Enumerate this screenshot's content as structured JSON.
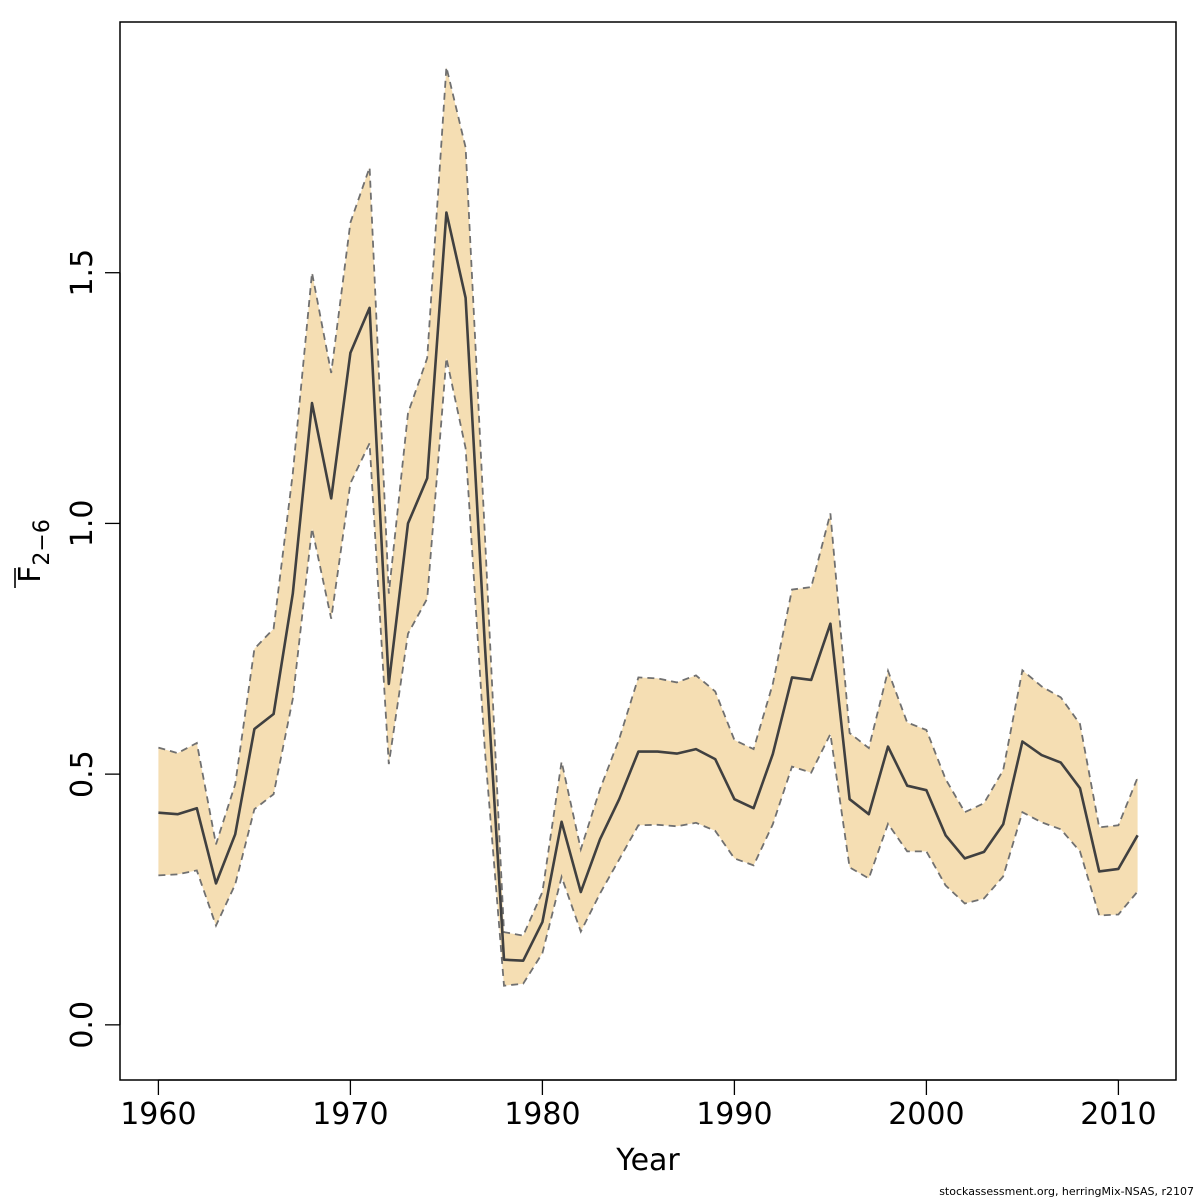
{
  "chart_data": {
    "type": "line",
    "title": "",
    "xlabel": "Year",
    "ylabel_main": "F",
    "ylabel_sub": "2−6",
    "xlim": [
      1958,
      2013
    ],
    "ylim": [
      -0.11,
      2.0
    ],
    "x_ticks": [
      1960,
      1970,
      1980,
      1990,
      2000,
      2010
    ],
    "y_ticks": [
      0.0,
      0.5,
      1.0,
      1.5
    ],
    "y_tick_labels": [
      "0.0",
      "0.5",
      "1.0",
      "1.5"
    ],
    "grid": false,
    "legend": "none",
    "colors": {
      "band_fill": "#f5deb3",
      "band_edge": "#707070",
      "line": "#404040",
      "axis": "#000000"
    },
    "x": [
      1960,
      1961,
      1962,
      1963,
      1964,
      1965,
      1966,
      1967,
      1968,
      1969,
      1970,
      1971,
      1972,
      1973,
      1974,
      1975,
      1976,
      1977,
      1978,
      1979,
      1980,
      1981,
      1982,
      1983,
      1984,
      1985,
      1986,
      1987,
      1988,
      1989,
      1990,
      1991,
      1992,
      1993,
      1994,
      1995,
      1996,
      1997,
      1998,
      1999,
      2000,
      2001,
      2002,
      2003,
      2004,
      2005,
      2006,
      2007,
      2008,
      2009,
      2010,
      2011
    ],
    "series": [
      {
        "role": "estimate",
        "values": [
          0.423,
          0.42,
          0.432,
          0.282,
          0.38,
          0.59,
          0.62,
          0.86,
          1.24,
          1.05,
          1.34,
          1.43,
          0.68,
          1.0,
          1.09,
          1.62,
          1.45,
          0.76,
          0.13,
          0.128,
          0.205,
          0.405,
          0.265,
          0.37,
          0.45,
          0.545,
          0.545,
          0.541,
          0.55,
          0.53,
          0.45,
          0.432,
          0.54,
          0.693,
          0.688,
          0.8,
          0.45,
          0.42,
          0.555,
          0.477,
          0.468,
          0.378,
          0.332,
          0.345,
          0.4,
          0.565,
          0.538,
          0.523,
          0.472,
          0.306,
          0.311,
          0.378
        ]
      },
      {
        "role": "upper",
        "values": [
          0.553,
          0.542,
          0.562,
          0.36,
          0.48,
          0.75,
          0.79,
          1.1,
          1.5,
          1.3,
          1.6,
          1.71,
          0.86,
          1.22,
          1.33,
          1.91,
          1.75,
          0.98,
          0.185,
          0.178,
          0.265,
          0.525,
          0.35,
          0.47,
          0.57,
          0.693,
          0.691,
          0.683,
          0.697,
          0.665,
          0.568,
          0.55,
          0.68,
          0.868,
          0.873,
          1.02,
          0.582,
          0.552,
          0.706,
          0.603,
          0.588,
          0.49,
          0.424,
          0.442,
          0.508,
          0.707,
          0.675,
          0.653,
          0.6,
          0.394,
          0.398,
          0.493
        ]
      },
      {
        "role": "lower",
        "values": [
          0.298,
          0.3,
          0.308,
          0.198,
          0.28,
          0.43,
          0.46,
          0.65,
          0.99,
          0.81,
          1.08,
          1.16,
          0.52,
          0.78,
          0.85,
          1.33,
          1.15,
          0.55,
          0.078,
          0.082,
          0.143,
          0.295,
          0.186,
          0.262,
          0.33,
          0.398,
          0.399,
          0.396,
          0.403,
          0.387,
          0.332,
          0.318,
          0.4,
          0.515,
          0.503,
          0.58,
          0.314,
          0.292,
          0.401,
          0.346,
          0.346,
          0.278,
          0.242,
          0.252,
          0.296,
          0.424,
          0.404,
          0.39,
          0.346,
          0.218,
          0.22,
          0.266
        ]
      }
    ]
  },
  "footer": {
    "credit": "stockassessment.org, herringMix-NSAS, r2107"
  }
}
